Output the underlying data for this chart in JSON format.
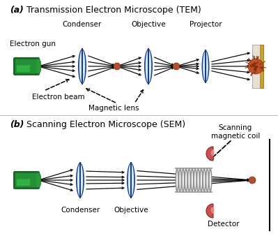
{
  "title_a": "Transmission Electron Microscope (TEM)",
  "title_b": "Scanning Electron Microscope (SEM)",
  "label_a": "(a)",
  "label_b": "(b)",
  "tem_labels": {
    "electron_gun": "Electron gun",
    "condenser": "Condenser",
    "objective": "Objective",
    "projector": "Projector",
    "electron_beam": "Electron beam",
    "magnetic_lens": "Magnetic lens"
  },
  "sem_labels": {
    "condenser": "Condenser",
    "objective": "Objective",
    "scanning_coil": "Scanning\nmagnetic coil",
    "detector": "Detector"
  },
  "gun_dark": "#1a6b28",
  "gun_mid": "#2a9a3a",
  "gun_light": "#3dcc55",
  "lens_face": "#c8e8f8",
  "lens_edge": "#1a3a7a",
  "lens_inner": "#e8f4fc",
  "focus_color": "#b05030",
  "screen_bg": "#e8e0d0",
  "screen_gold": "#c8a030",
  "sample_color": "#c05028",
  "coil_color": "#909090",
  "det_color": "#d06060",
  "det_highlight": "#f0a0a0",
  "arrow_color": "black",
  "text_color": "black",
  "bg_color": "white",
  "divline_color": "#bbbbbb"
}
